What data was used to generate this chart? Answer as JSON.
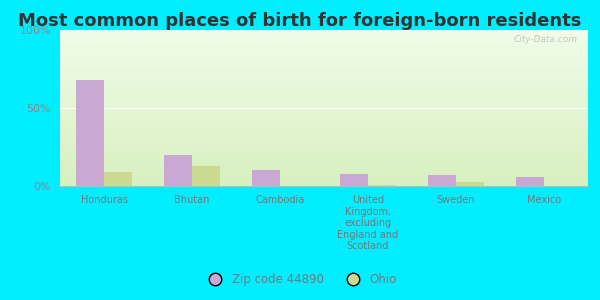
{
  "title": "Most common places of birth for foreign-born residents",
  "categories": [
    "Honduras",
    "Bhutan",
    "Cambodia",
    "United\nKingdom,\nexcluding\nEngland and\nScotland",
    "Sweden",
    "Mexico"
  ],
  "zip_values": [
    68,
    20,
    10,
    8,
    7,
    6
  ],
  "ohio_values": [
    9,
    13,
    0,
    0.5,
    2.5,
    0
  ],
  "zip_color": "#c9a8d4",
  "ohio_color": "#ccd990",
  "bar_width": 0.32,
  "ylim": [
    0,
    100
  ],
  "yticks": [
    0,
    50,
    100
  ],
  "ytick_labels": [
    "0%",
    "50%",
    "100%"
  ],
  "background_color": "#00eeff",
  "legend_zip": "Zip code 44890",
  "legend_ohio": "Ohio",
  "watermark": "City-Data.com",
  "title_fontsize": 13,
  "label_fontsize": 8
}
